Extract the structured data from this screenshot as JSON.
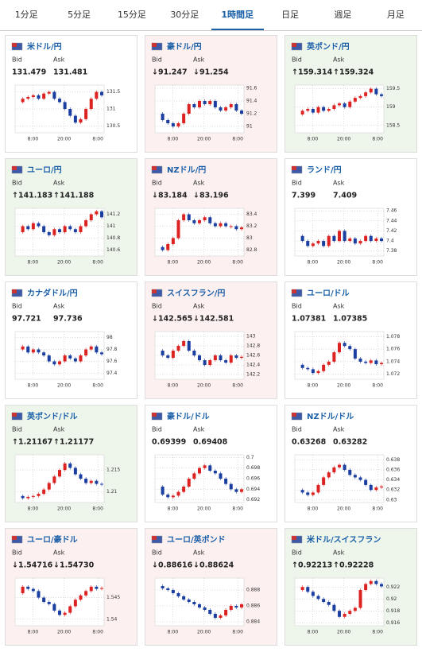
{
  "tabs": [
    "1分足",
    "5分足",
    "15分足",
    "30分足",
    "1時間足",
    "日足",
    "週足",
    "月足"
  ],
  "selected_tab": 4,
  "labels": {
    "bid": "Bid",
    "ask": "Ask"
  },
  "panels": [
    {
      "title": "米ドル/円",
      "bid": "131.479",
      "ask": "131.481",
      "background": "#ffffff",
      "ylim": [
        130.3,
        131.7
      ],
      "yticks": [
        130.5,
        131,
        131.5
      ],
      "xticks": [
        "8:00",
        "20:00",
        "8:00"
      ],
      "values": [
        131.2,
        131.3,
        131.35,
        131.4,
        131.3,
        131.45,
        131.5,
        131.3,
        131.2,
        131.0,
        130.8,
        130.6,
        130.7,
        131.0,
        131.3,
        131.5,
        131.4
      ]
    },
    {
      "title": "豪ドル/円",
      "bid": "↓91.247",
      "ask": "↓91.254",
      "background": "#fdf0f0",
      "ylim": [
        90.9,
        91.65
      ],
      "yticks": [
        91,
        91.2,
        91.4,
        91.6
      ],
      "xticks": [
        "8:00",
        "20:00",
        "8:00"
      ],
      "values": [
        91.2,
        91.1,
        91.05,
        91.0,
        91.05,
        91.2,
        91.35,
        91.3,
        91.4,
        91.35,
        91.4,
        91.3,
        91.25,
        91.3,
        91.35,
        91.25,
        91.2
      ]
    },
    {
      "title": "英ポンド/円",
      "bid": "↑159.314",
      "ask": "↑159.324",
      "background": "#eef6ec",
      "ylim": [
        158.3,
        159.6
      ],
      "yticks": [
        158.5,
        159,
        159.5
      ],
      "xticks": [
        "8:00",
        "20:00",
        "8:00"
      ],
      "values": [
        158.8,
        158.9,
        158.95,
        158.85,
        159.0,
        158.9,
        158.95,
        159.05,
        159.1,
        159.0,
        159.15,
        159.25,
        159.3,
        159.4,
        159.5,
        159.35,
        159.3
      ]
    },
    {
      "title": "ユーロ/円",
      "bid": "↑141.183",
      "ask": "↑141.188",
      "background": "#eef6ec",
      "ylim": [
        140.5,
        141.3
      ],
      "yticks": [
        140.6,
        140.8,
        141,
        141.2
      ],
      "xticks": [
        "8:00",
        "20:00",
        "8:00"
      ],
      "values": [
        140.9,
        141.0,
        140.95,
        141.05,
        141.0,
        140.9,
        140.85,
        140.95,
        140.9,
        141.0,
        140.95,
        140.9,
        141.0,
        141.1,
        141.2,
        141.25,
        141.15
      ]
    },
    {
      "title": "NZドル/円",
      "bid": "↓83.184",
      "ask": "↓83.196",
      "background": "#fdf0f0",
      "ylim": [
        82.7,
        83.5
      ],
      "yticks": [
        82.8,
        83,
        83.2,
        83.4
      ],
      "xticks": [
        "8:00",
        "20:00",
        "8:00"
      ],
      "values": [
        82.85,
        82.8,
        82.9,
        83.0,
        83.3,
        83.4,
        83.3,
        83.25,
        83.3,
        83.35,
        83.25,
        83.2,
        83.25,
        83.2,
        83.2,
        83.15,
        83.18
      ]
    },
    {
      "title": "ランド/円",
      "bid": "7.399",
      "ask": "7.409",
      "background": "#ffffff",
      "ylim": [
        7.37,
        7.465
      ],
      "yticks": [
        7.38,
        7.4,
        7.42,
        7.44,
        7.46
      ],
      "xticks": [
        "8:00",
        "20:00",
        "8:00"
      ],
      "values": [
        7.41,
        7.4,
        7.39,
        7.395,
        7.4,
        7.39,
        7.41,
        7.4,
        7.42,
        7.4,
        7.405,
        7.395,
        7.4,
        7.41,
        7.4,
        7.405,
        7.4
      ]
    },
    {
      "title": "カナダドル/円",
      "bid": "97.721",
      "ask": "97.736",
      "background": "#ffffff",
      "ylim": [
        97.3,
        98.1
      ],
      "yticks": [
        97.4,
        97.6,
        97.8,
        98
      ],
      "xticks": [
        "8:00",
        "20:00",
        "8:00"
      ],
      "values": [
        97.8,
        97.85,
        97.75,
        97.8,
        97.75,
        97.7,
        97.6,
        97.55,
        97.6,
        97.7,
        97.65,
        97.6,
        97.7,
        97.8,
        97.85,
        97.75,
        97.72
      ]
    },
    {
      "title": "スイスフラン/円",
      "bid": "↓142.565",
      "ask": "↓142.581",
      "background": "#fdf0f0",
      "ylim": [
        142.1,
        143.1
      ],
      "yticks": [
        142.2,
        142.4,
        142.6,
        142.8,
        143
      ],
      "xticks": [
        "8:00",
        "20:00",
        "8:00"
      ],
      "values": [
        142.7,
        142.6,
        142.55,
        142.7,
        142.8,
        142.9,
        142.7,
        142.6,
        142.5,
        142.4,
        142.5,
        142.6,
        142.5,
        142.45,
        142.6,
        142.55,
        142.57
      ]
    },
    {
      "title": "ユーロ/ドル",
      "bid": "1.07381",
      "ask": "1.07385",
      "background": "#ffffff",
      "ylim": [
        1.0712,
        1.0788
      ],
      "yticks": [
        1.072,
        1.074,
        1.076,
        1.078
      ],
      "xticks": [
        "8:00",
        "20:00",
        "8:00"
      ],
      "values": [
        1.0735,
        1.073,
        1.0728,
        1.0722,
        1.0725,
        1.0735,
        1.074,
        1.0755,
        1.077,
        1.0765,
        1.076,
        1.0745,
        1.074,
        1.0738,
        1.0742,
        1.0736,
        1.0738
      ]
    },
    {
      "title": "英ポンド/ドル",
      "bid": "↑1.21167",
      "ask": "↑1.21177",
      "background": "#eef6ec",
      "ylim": [
        1.2075,
        1.2185
      ],
      "yticks": [
        1.21,
        1.215
      ],
      "xticks": [
        "8:00",
        "20:00",
        "8:00"
      ],
      "values": [
        1.209,
        1.2085,
        1.2088,
        1.209,
        1.2095,
        1.2105,
        1.212,
        1.2135,
        1.215,
        1.2165,
        1.2155,
        1.214,
        1.213,
        1.212,
        1.2125,
        1.2118,
        1.2117
      ]
    },
    {
      "title": "豪ドル/ドル",
      "bid": "0.69399",
      "ask": "0.69408",
      "background": "#ffffff",
      "ylim": [
        0.6915,
        0.7005
      ],
      "yticks": [
        0.692,
        0.694,
        0.696,
        0.698,
        0.7
      ],
      "xticks": [
        "8:00",
        "20:00",
        "8:00"
      ],
      "values": [
        0.6945,
        0.693,
        0.6925,
        0.6928,
        0.6935,
        0.6945,
        0.696,
        0.697,
        0.698,
        0.6985,
        0.6975,
        0.697,
        0.696,
        0.695,
        0.694,
        0.6935,
        0.694
      ]
    },
    {
      "title": "NZドル/ドル",
      "bid": "0.63268",
      "ask": "0.63282",
      "background": "#ffffff",
      "ylim": [
        0.6295,
        0.639
      ],
      "yticks": [
        0.63,
        0.632,
        0.634,
        0.636,
        0.638
      ],
      "xticks": [
        "8:00",
        "20:00",
        "8:00"
      ],
      "values": [
        0.632,
        0.6315,
        0.631,
        0.6315,
        0.633,
        0.6345,
        0.6355,
        0.6365,
        0.637,
        0.636,
        0.635,
        0.6345,
        0.634,
        0.633,
        0.632,
        0.6325,
        0.6327
      ]
    },
    {
      "title": "ユーロ/豪ドル",
      "bid": "↓1.54716",
      "ask": "↓1.54730",
      "background": "#fdf0f0",
      "ylim": [
        1.5385,
        1.5495
      ],
      "yticks": [
        1.54,
        1.545
      ],
      "xticks": [
        "8:00",
        "20:00",
        "8:00"
      ],
      "values": [
        1.546,
        1.5475,
        1.547,
        1.5465,
        1.545,
        1.544,
        1.5435,
        1.542,
        1.541,
        1.5415,
        1.543,
        1.5445,
        1.5455,
        1.5465,
        1.5475,
        1.547,
        1.5472
      ]
    },
    {
      "title": "ユーロ/英ポンド",
      "bid": "↓0.88616",
      "ask": "↓0.88624",
      "background": "#fdf0f0",
      "ylim": [
        0.8835,
        0.8895
      ],
      "yticks": [
        0.884,
        0.886,
        0.888
      ],
      "xticks": [
        "8:00",
        "20:00",
        "8:00"
      ],
      "values": [
        0.8885,
        0.8882,
        0.888,
        0.8876,
        0.8872,
        0.8868,
        0.8865,
        0.8862,
        0.8858,
        0.8855,
        0.885,
        0.8845,
        0.8848,
        0.8855,
        0.886,
        0.8858,
        0.8862
      ]
    },
    {
      "title": "米ドル/スイスフラン",
      "bid": "↑0.92213",
      "ask": "↑0.92228",
      "background": "#eef6ec",
      "ylim": [
        0.9155,
        0.9235
      ],
      "yticks": [
        0.916,
        0.918,
        0.92,
        0.922
      ],
      "xticks": [
        "8:00",
        "20:00",
        "8:00"
      ],
      "values": [
        0.9215,
        0.922,
        0.9212,
        0.9205,
        0.92,
        0.9195,
        0.919,
        0.918,
        0.917,
        0.9175,
        0.918,
        0.9185,
        0.9215,
        0.9225,
        0.923,
        0.9225,
        0.9221
      ]
    }
  ]
}
